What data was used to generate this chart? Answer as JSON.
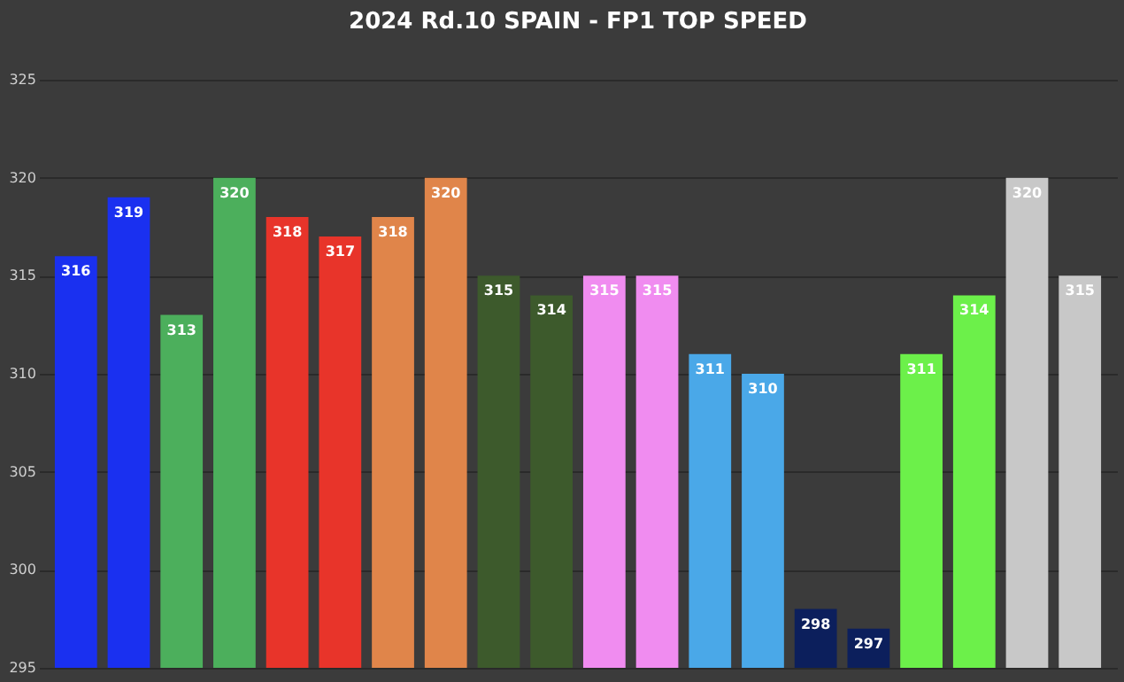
{
  "chart_data": {
    "type": "bar",
    "title": "2024 Rd.10 SPAIN - FP1 TOP SPEED",
    "categories": [
      null,
      null,
      null,
      null,
      null,
      null,
      null,
      null,
      null,
      null,
      null,
      null,
      null,
      null,
      null,
      null,
      null,
      null,
      null,
      null
    ],
    "values": [
      316,
      319,
      313,
      320,
      318,
      317,
      318,
      320,
      315,
      314,
      315,
      315,
      311,
      310,
      298,
      297,
      311,
      314,
      320,
      315
    ],
    "colors": [
      "#1a30f0",
      "#1a30f0",
      "#4caf5c",
      "#4caf5c",
      "#e8342a",
      "#e8342a",
      "#e0854a",
      "#e0854a",
      "#3d5a2c",
      "#3d5a2c",
      "#f08cf0",
      "#f08cf0",
      "#4aa8e8",
      "#4aa8e8",
      "#0c1f5c",
      "#0c1f5c",
      "#6cf04a",
      "#6cf04a",
      "#c8c8c8",
      "#c8c8c8"
    ],
    "ylim": [
      295,
      325
    ],
    "yticks": [
      295,
      300,
      305,
      310,
      315,
      320,
      325
    ],
    "grid": "y",
    "data_labels": true
  }
}
